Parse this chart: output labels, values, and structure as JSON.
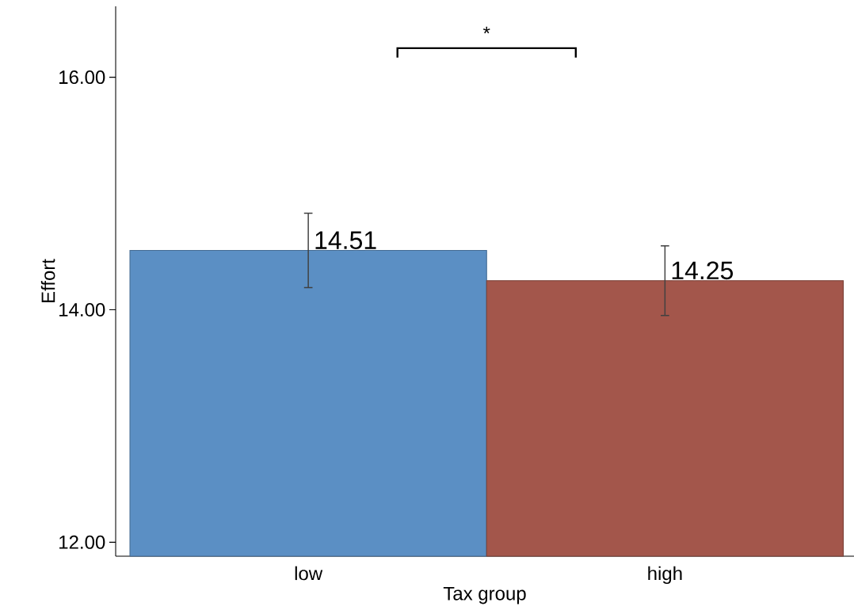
{
  "chart_data": {
    "type": "bar",
    "xlabel": "Tax group",
    "ylabel": "Effort",
    "categories": [
      "low",
      "high"
    ],
    "values": [
      14.51,
      14.25
    ],
    "colors": [
      "#5b8fc4",
      "#a3564b"
    ],
    "errors": [
      0.32,
      0.3
    ],
    "data_labels": true,
    "ylim": [
      11.88,
      16.61
    ],
    "yticks": [
      {
        "value": 12,
        "label": "12.00"
      },
      {
        "value": 14,
        "label": "14.00"
      },
      {
        "value": 16,
        "label": "16.00"
      }
    ],
    "annotations": [
      "*"
    ]
  }
}
